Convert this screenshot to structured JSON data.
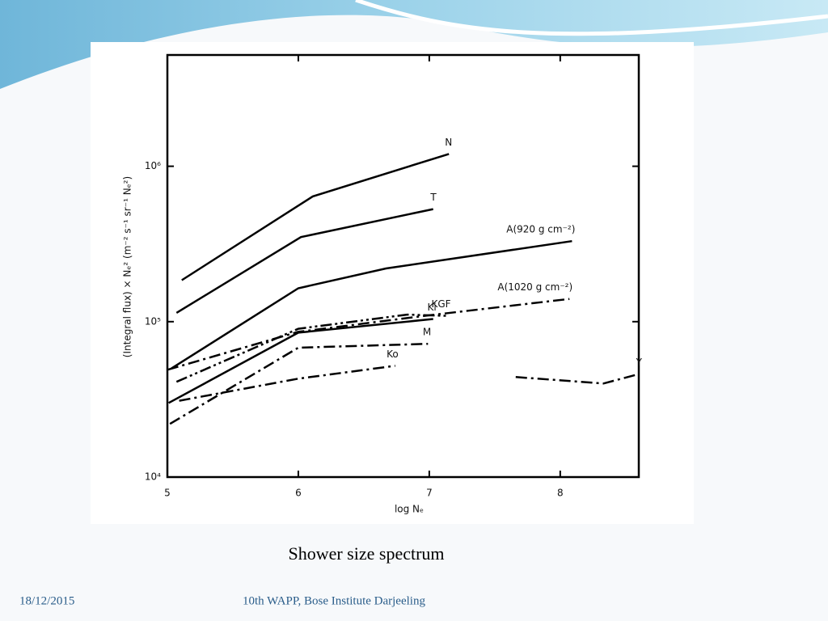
{
  "chart_data": {
    "type": "line",
    "xlabel": "log Nₑ",
    "ylabel": "(Integral flux) × Nₑ² (m⁻² s⁻¹ sr⁻¹ Nₑ²)",
    "xlim": [
      5,
      8.6
    ],
    "xticks": [
      5,
      6,
      7,
      8
    ],
    "ylim": [
      10000,
      5200000
    ],
    "log_y": true,
    "yticks": [
      {
        "value": 10000,
        "label": "10⁴"
      },
      {
        "value": 100000,
        "label": "10⁵"
      },
      {
        "value": 1000000,
        "label": "10⁶"
      }
    ],
    "series": [
      {
        "name": "N",
        "color": "#000000",
        "dash": "solid",
        "x": [
          5.11,
          6.11,
          7.15
        ],
        "values": [
          185000,
          640000,
          1200000
        ]
      },
      {
        "name": "T",
        "color": "#000000",
        "dash": "solid",
        "x": [
          5.07,
          6.02,
          7.03
        ],
        "values": [
          114000,
          350000,
          530000
        ]
      },
      {
        "name": "A(920 g cm⁻²)",
        "color": "#000000",
        "dash": "solid",
        "x": [
          5.03,
          6.0,
          6.67,
          8.09
        ],
        "values": [
          50000,
          164000,
          220000,
          330000
        ]
      },
      {
        "name": "A(1020 g cm⁻²)",
        "color": "#000000",
        "dash": "dashdot",
        "x": [
          5.0,
          6.0,
          7.0,
          8.07
        ],
        "values": [
          49000,
          86000,
          110000,
          140000
        ]
      },
      {
        "name": "KGF",
        "color": "#000000",
        "dash": "dashdotdot",
        "x": [
          5.07,
          6.0,
          6.83,
          7.14
        ],
        "values": [
          41000,
          90000,
          111000,
          109000
        ]
      },
      {
        "name": "Ki",
        "color": "#000000",
        "dash": "solid",
        "x": [
          5.01,
          6.0,
          7.03
        ],
        "values": [
          30000,
          85000,
          104000
        ]
      },
      {
        "name": "M",
        "color": "#000000",
        "dash": "dashdot",
        "x": [
          5.02,
          6.0,
          6.99
        ],
        "values": [
          22000,
          68000,
          72000
        ]
      },
      {
        "name": "Ko",
        "color": "#000000",
        "dash": "dashdot",
        "x": [
          5.09,
          6.0,
          6.74
        ],
        "values": [
          31000,
          43000,
          52000
        ]
      },
      {
        "name": "Y",
        "color": "#000000",
        "dash": "dashdot",
        "x": [
          7.66,
          8.33,
          8.6
        ],
        "values": [
          44000,
          40000,
          46000
        ]
      }
    ]
  },
  "caption": "Shower size spectrum",
  "footer": {
    "date": "18/12/2015",
    "event": "10th WAPP, Bose Institute Darjeeling"
  }
}
